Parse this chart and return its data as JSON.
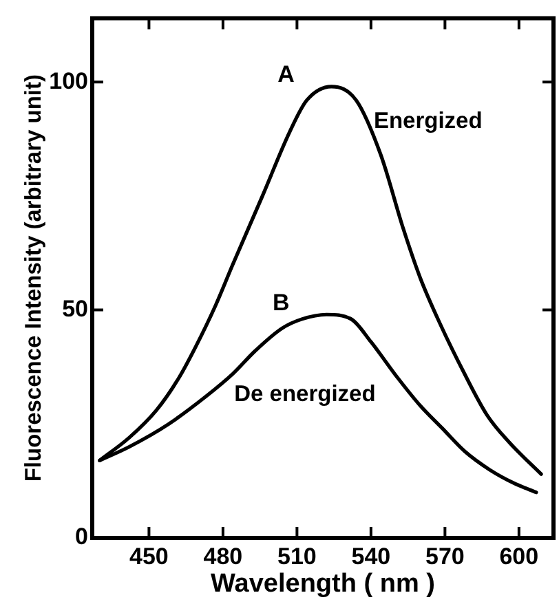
{
  "chart_data": {
    "type": "line",
    "xlabel": "Wavelength ( nm )",
    "ylabel": "Fluorescence Intensity (arbitrary unit)",
    "series": [
      {
        "name": "A",
        "color": "#000000",
        "x": [
          430,
          442,
          453,
          462,
          469,
          477,
          484,
          496,
          507,
          514,
          524,
          534,
          544,
          553,
          560,
          568,
          577,
          587,
          596,
          609
        ],
        "values": [
          17,
          22,
          28,
          35,
          42,
          51,
          60,
          75,
          89,
          96,
          99,
          96,
          84,
          68,
          57,
          47,
          37,
          27,
          21,
          14
        ]
      },
      {
        "name": "B",
        "color": "#000000",
        "x": [
          430,
          442,
          458,
          473,
          484,
          493,
          504,
          512,
          522,
          532,
          540,
          551,
          560,
          569,
          578,
          588,
          598,
          607
        ],
        "values": [
          17,
          20,
          25,
          31,
          36,
          41,
          46,
          48,
          49,
          48,
          43,
          35,
          29,
          24,
          19,
          15,
          12,
          10
        ]
      }
    ],
    "xlim": [
      427,
      614
    ],
    "ylim": [
      0,
      114
    ],
    "xticks": [
      450,
      480,
      510,
      540,
      570,
      600
    ],
    "yticks": [
      0,
      50,
      100
    ],
    "annotations": [
      "Energized",
      "De energized"
    ]
  }
}
